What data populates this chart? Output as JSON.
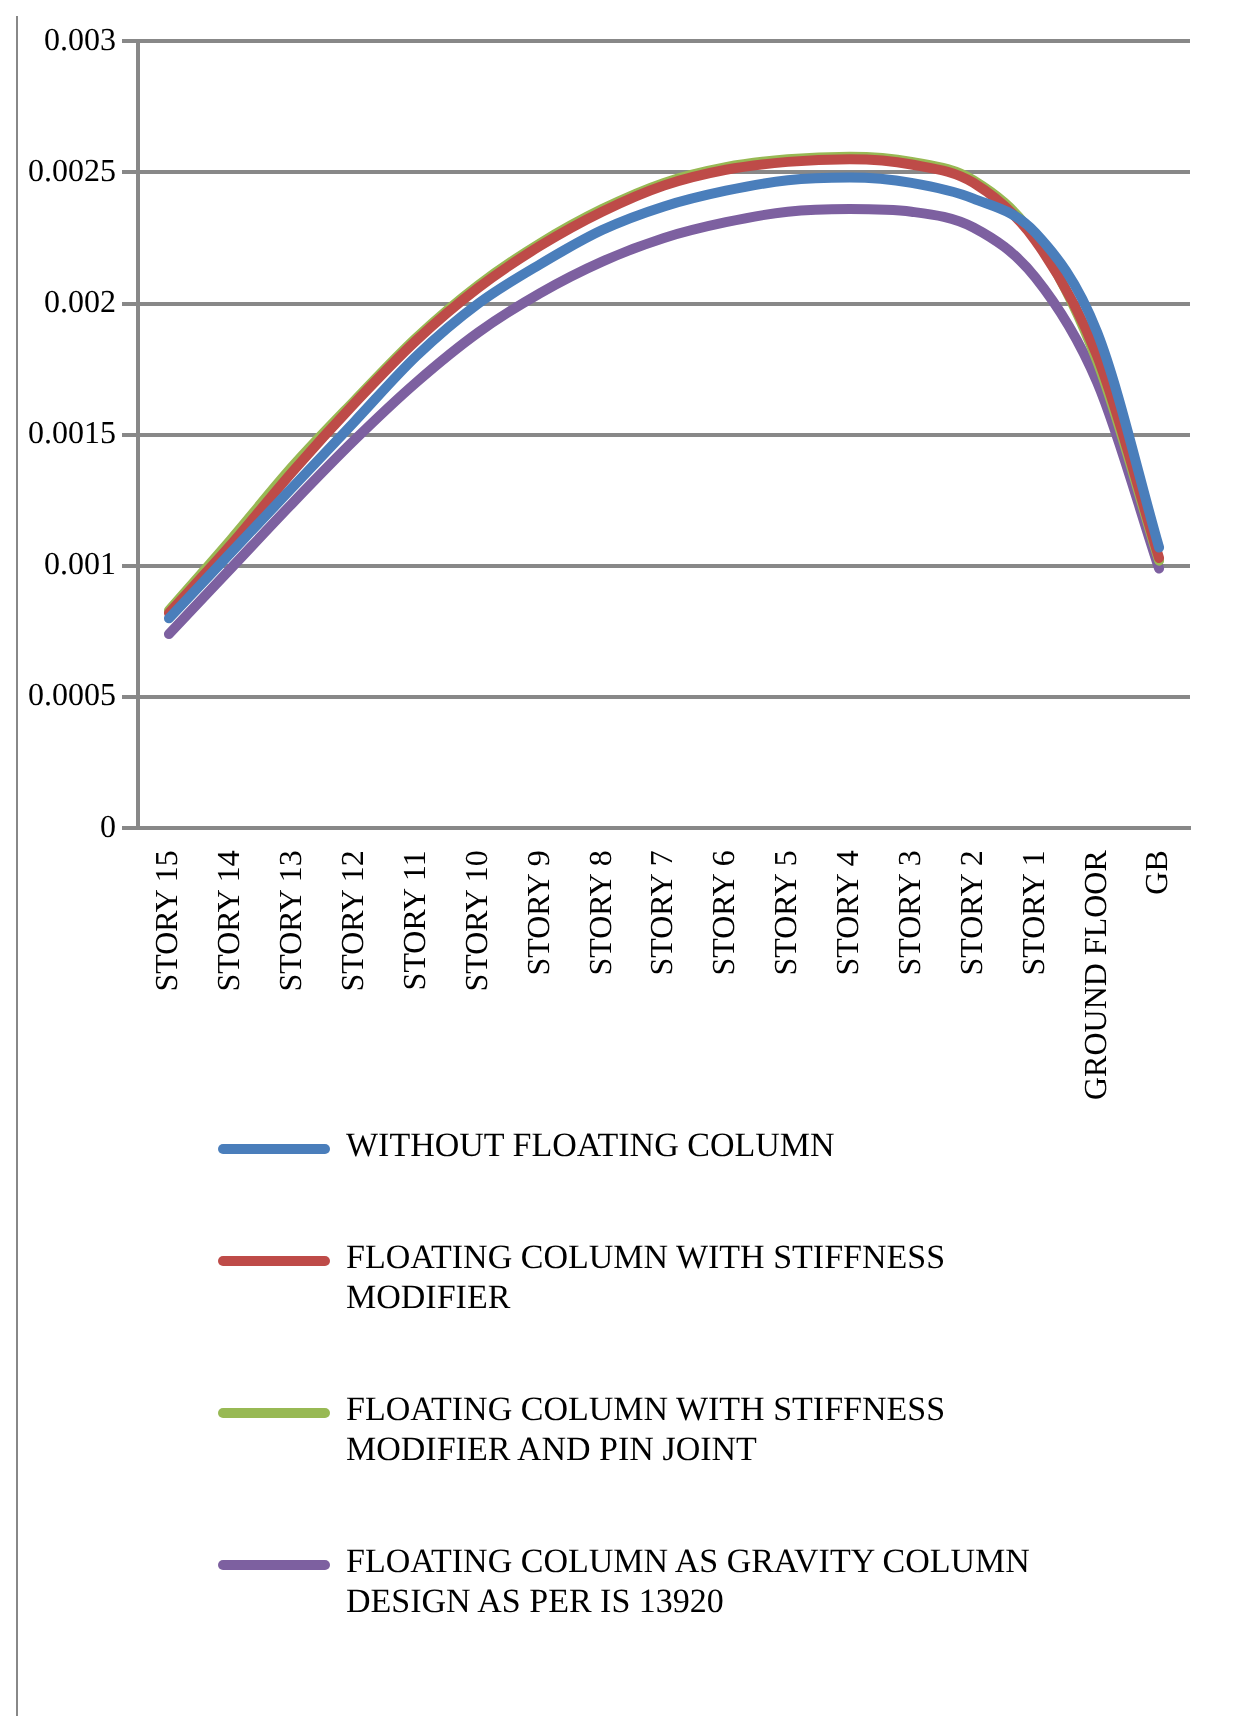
{
  "chart_data": {
    "type": "line",
    "categories": [
      "STORY 15",
      "STORY 14",
      "STORY 13",
      "STORY 12",
      "STORY 11",
      "STORY 10",
      "STORY 9",
      "STORY 8",
      "STORY 7",
      "STORY 6",
      "STORY 5",
      "STORY 4",
      "STORY 3",
      "STORY 2",
      "STORY 1",
      "GROUND FLOOR",
      "GB"
    ],
    "series": [
      {
        "name": "WITHOUT FLOATING COLUMN",
        "color": "#4a7ebb",
        "values": [
          0.0008,
          0.00105,
          0.0013,
          0.00155,
          0.0018,
          0.002,
          0.00215,
          0.00228,
          0.00237,
          0.00243,
          0.00247,
          0.00248,
          0.00246,
          0.0024,
          0.00227,
          0.00189,
          0.00107
        ]
      },
      {
        "name": "FLOATING COLUMN WITH STIFFNESS MODIFIER",
        "color": "#be4b48",
        "values": [
          0.00082,
          0.00108,
          0.00136,
          0.00162,
          0.00186,
          0.00206,
          0.00222,
          0.00235,
          0.00245,
          0.00251,
          0.00254,
          0.00255,
          0.00253,
          0.00246,
          0.00224,
          0.0018,
          0.00103
        ]
      },
      {
        "name": "FLOATING COLUMN WITH STIFFNESS MODIFIER AND PIN JOINT",
        "color": "#98b954",
        "values": [
          0.00083,
          0.0011,
          0.00138,
          0.00163,
          0.00187,
          0.00207,
          0.00223,
          0.00236,
          0.00246,
          0.00252,
          0.00255,
          0.00256,
          0.00254,
          0.00247,
          0.00225,
          0.00178,
          0.00102
        ]
      },
      {
        "name": "FLOATING COLUMN AS GRAVITY COLUMN DESIGN AS PER IS 13920",
        "color": "#7d60a0",
        "values": [
          0.00074,
          0.00099,
          0.00124,
          0.00148,
          0.0017,
          0.00189,
          0.00204,
          0.00216,
          0.00225,
          0.00231,
          0.00235,
          0.00236,
          0.00235,
          0.00229,
          0.0021,
          0.0017,
          0.00099
        ]
      }
    ],
    "ylim": [
      0,
      0.003
    ],
    "yticks": [
      0,
      0.0005,
      0.001,
      0.0015,
      0.002,
      0.0025,
      0.003
    ],
    "grid": "y",
    "legend": "bottom",
    "marker": "none",
    "line_style": "solid"
  }
}
